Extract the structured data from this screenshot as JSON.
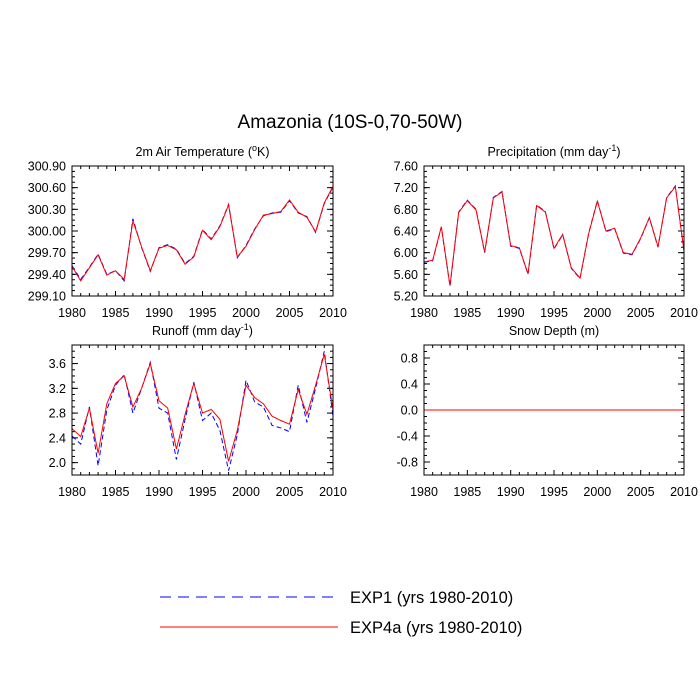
{
  "figure": {
    "title": "Amazonia (10S-0,70-50W)"
  },
  "legend": {
    "placement": "bottom-center",
    "entries": [
      {
        "label": "EXP1 (yrs 1980-2010)",
        "color": "#0000ff",
        "style": "dashed"
      },
      {
        "label": "EXP4a (yrs 1980-2010)",
        "color": "#ff0000",
        "style": "solid"
      }
    ]
  },
  "chart_data": [
    {
      "type": "line",
      "title": "2m Air Temperature (°K)",
      "title_parts": [
        "2m Air Temperature (",
        "o",
        "K)"
      ],
      "x": [
        1980,
        1981,
        1982,
        1983,
        1984,
        1985,
        1986,
        1987,
        1988,
        1989,
        1990,
        1991,
        1992,
        1993,
        1994,
        1995,
        1996,
        1997,
        1998,
        1999,
        2000,
        2001,
        2002,
        2003,
        2004,
        2005,
        2006,
        2007,
        2008,
        2009,
        2010
      ],
      "xlim": [
        1980,
        2010
      ],
      "xticks": [
        1980,
        1985,
        1990,
        1995,
        2000,
        2005,
        2010
      ],
      "xtick_labels": [
        "1980",
        "1985",
        "1990",
        "1995",
        "2000",
        "2005",
        "2010"
      ],
      "ylim": [
        299.1,
        300.9
      ],
      "yticks": [
        299.1,
        299.4,
        299.7,
        300.0,
        300.3,
        300.6,
        300.9
      ],
      "ytick_labels": [
        "299.10",
        "299.40",
        "299.70",
        "300.00",
        "300.30",
        "300.60",
        "300.90"
      ],
      "grid": false,
      "series": [
        {
          "name": "EXP1 (yrs 1980-2010)",
          "color": "#0000ff",
          "style": "dashed",
          "values": [
            299.52,
            299.33,
            299.5,
            299.68,
            299.4,
            299.45,
            299.31,
            300.17,
            299.77,
            299.44,
            299.77,
            299.81,
            299.75,
            299.55,
            299.65,
            300.02,
            299.89,
            300.07,
            300.37,
            299.63,
            299.8,
            300.03,
            300.21,
            300.25,
            300.26,
            300.42,
            300.25,
            300.2,
            299.98,
            300.38,
            300.61
          ]
        },
        {
          "name": "EXP4a (yrs 1980-2010)",
          "color": "#ff0000",
          "style": "solid",
          "values": [
            299.51,
            299.31,
            299.49,
            299.67,
            299.39,
            299.45,
            299.33,
            300.14,
            299.78,
            299.45,
            299.76,
            299.8,
            299.74,
            299.54,
            299.64,
            300.01,
            299.88,
            300.06,
            300.36,
            299.64,
            299.79,
            300.02,
            300.22,
            300.24,
            300.27,
            300.43,
            300.26,
            300.19,
            299.99,
            300.39,
            300.62
          ]
        }
      ]
    },
    {
      "type": "line",
      "title": "Precipitation (mm day-1)",
      "title_parts": [
        "Precipitation (mm day",
        "-1",
        ")"
      ],
      "x": [
        1980,
        1981,
        1982,
        1983,
        1984,
        1985,
        1986,
        1987,
        1988,
        1989,
        1990,
        1991,
        1992,
        1993,
        1994,
        1995,
        1996,
        1997,
        1998,
        1999,
        2000,
        2001,
        2002,
        2003,
        2004,
        2005,
        2006,
        2007,
        2008,
        2009,
        2010
      ],
      "xlim": [
        1980,
        2010
      ],
      "xticks": [
        1980,
        1985,
        1990,
        1995,
        2000,
        2005,
        2010
      ],
      "xtick_labels": [
        "1980",
        "1985",
        "1990",
        "1995",
        "2000",
        "2005",
        "2010"
      ],
      "ylim": [
        5.2,
        7.6
      ],
      "yticks": [
        5.2,
        5.6,
        6.0,
        6.4,
        6.8,
        7.2,
        7.6
      ],
      "ytick_labels": [
        "5.20",
        "5.60",
        "6.00",
        "6.40",
        "6.80",
        "7.20",
        "7.60"
      ],
      "grid": false,
      "series": [
        {
          "name": "EXP1 (yrs 1980-2010)",
          "color": "#0000ff",
          "style": "dashed",
          "values": [
            5.82,
            5.85,
            6.47,
            5.38,
            6.75,
            6.97,
            6.8,
            6.0,
            7.02,
            7.13,
            6.12,
            6.08,
            5.6,
            6.88,
            6.76,
            6.07,
            6.33,
            5.71,
            5.52,
            6.36,
            6.96,
            6.39,
            6.44,
            5.99,
            5.96,
            6.26,
            6.64,
            6.1,
            7.02,
            7.23,
            6.03
          ]
        },
        {
          "name": "EXP4a (yrs 1980-2010)",
          "color": "#ff0000",
          "style": "solid",
          "values": [
            5.83,
            5.86,
            6.48,
            5.39,
            6.74,
            6.96,
            6.79,
            6.01,
            7.01,
            7.12,
            6.13,
            6.09,
            5.61,
            6.87,
            6.75,
            6.08,
            6.34,
            5.72,
            5.53,
            6.35,
            6.95,
            6.4,
            6.45,
            6.0,
            5.97,
            6.27,
            6.65,
            6.11,
            7.01,
            7.22,
            6.04
          ]
        }
      ]
    },
    {
      "type": "line",
      "title": "Runoff (mm day-1)",
      "title_parts": [
        "Runoff (mm day",
        "-1",
        ")"
      ],
      "x": [
        1980,
        1981,
        1982,
        1983,
        1984,
        1985,
        1986,
        1987,
        1988,
        1989,
        1990,
        1991,
        1992,
        1993,
        1994,
        1995,
        1996,
        1997,
        1998,
        1999,
        2000,
        2001,
        2002,
        2003,
        2004,
        2005,
        2006,
        2007,
        2008,
        2009,
        2010
      ],
      "xlim": [
        1980,
        2010
      ],
      "xticks": [
        1980,
        1985,
        1990,
        1995,
        2000,
        2005,
        2010
      ],
      "xtick_labels": [
        "1980",
        "1985",
        "1990",
        "1995",
        "2000",
        "2005",
        "2010"
      ],
      "ylim": [
        1.8,
        3.9
      ],
      "yticks": [
        2.0,
        2.4,
        2.8,
        3.2,
        3.6
      ],
      "ytick_labels": [
        "2.0",
        "2.4",
        "2.8",
        "3.2",
        "3.6"
      ],
      "grid": false,
      "series": [
        {
          "name": "EXP1 (yrs 1980-2010)",
          "color": "#0000ff",
          "style": "dashed",
          "values": [
            2.43,
            2.3,
            2.9,
            1.95,
            2.85,
            3.25,
            3.42,
            2.8,
            3.2,
            3.62,
            2.88,
            2.8,
            2.05,
            2.7,
            3.3,
            2.68,
            2.8,
            2.52,
            1.87,
            2.45,
            3.33,
            2.98,
            2.9,
            2.6,
            2.56,
            2.5,
            3.25,
            2.65,
            3.2,
            3.8,
            2.75
          ]
        },
        {
          "name": "EXP4a (yrs 1980-2010)",
          "color": "#ff0000",
          "style": "solid",
          "values": [
            2.55,
            2.42,
            2.88,
            2.15,
            2.95,
            3.28,
            3.4,
            2.9,
            3.2,
            3.6,
            3.0,
            2.88,
            2.22,
            2.78,
            3.28,
            2.8,
            2.86,
            2.7,
            2.02,
            2.52,
            3.25,
            3.05,
            2.95,
            2.75,
            2.68,
            2.62,
            3.18,
            2.78,
            3.25,
            3.75,
            2.85
          ]
        }
      ]
    },
    {
      "type": "line",
      "title": "Snow Depth (m)",
      "title_parts": [
        "Snow Depth (m)",
        "",
        ""
      ],
      "x": [
        1980,
        2010
      ],
      "xlim": [
        1980,
        2010
      ],
      "xticks": [
        1980,
        1985,
        1990,
        1995,
        2000,
        2005,
        2010
      ],
      "xtick_labels": [
        "1980",
        "1985",
        "1990",
        "1995",
        "2000",
        "2005",
        "2010"
      ],
      "ylim": [
        -1.0,
        1.0
      ],
      "yticks": [
        -0.8,
        -0.4,
        0.0,
        0.4,
        0.8
      ],
      "ytick_labels": [
        "-0.8",
        "-0.4",
        "0.0",
        "0.4",
        "0.8"
      ],
      "grid": false,
      "series": [
        {
          "name": "EXP1 (yrs 1980-2010)",
          "color": "#0000ff",
          "style": "dashed",
          "values": [
            0.0,
            0.0
          ]
        },
        {
          "name": "EXP4a (yrs 1980-2010)",
          "color": "#ff0000",
          "style": "solid",
          "values": [
            0.0,
            0.0
          ]
        }
      ]
    }
  ]
}
